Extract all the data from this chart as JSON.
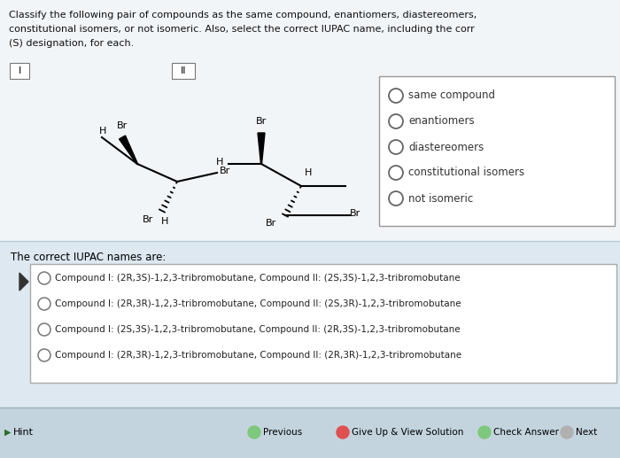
{
  "bg_color": "#d0dce6",
  "white_area": "#f0f4f8",
  "title_text_lines": [
    "Classify the following pair of compounds as the same compound, enantiomers, diastereomers,",
    "constitutional isomers, or not isomeric. Also, select the correct IUPAC name, including the corr",
    "(S) designation, for each."
  ],
  "label_I": "I",
  "label_II": "II",
  "radio_options": [
    "same compound",
    "enantiomers",
    "diastereomers",
    "constitutional isomers",
    "not isomeric"
  ],
  "iupac_header": "The correct IUPAC names are:",
  "iupac_options": [
    "Compound I: (2R,3S)-1,2,3-tribromobutane, Compound II: (2S,3S)-1,2,3-tribromobutane",
    "Compound I: (2R,3R)-1,2,3-tribromobutane, Compound II: (2S,3R)-1,2,3-tribromobutane",
    "Compound I: (2S,3S)-1,2,3-tribromobutane, Compound II: (2R,3S)-1,2,3-tribromobutane",
    "Compound I: (2R,3R)-1,2,3-tribromobutane, Compound II: (2R,3R)-1,2,3-tribromobutane"
  ],
  "nav_buttons": [
    "Previous",
    "Give Up & View Solution",
    "Check Answer",
    "Next"
  ],
  "nav_colors": [
    "#7dc87d",
    "#e05050",
    "#7dc87d",
    "#b0b0b0"
  ],
  "hint_text": "Hint"
}
